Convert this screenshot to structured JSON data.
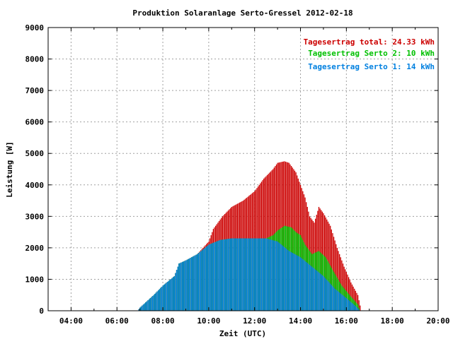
{
  "chart_data": {
    "type": "bar",
    "title": "Produktion Solaranlage Serto-Gressel 2012-02-18",
    "xlabel": "Zeit (UTC)",
    "ylabel": "Leistung [W]",
    "xlim": [
      3.0,
      20.0
    ],
    "ylim": [
      0,
      9000
    ],
    "grid": true,
    "legend_position": "top-right",
    "x_ticks": [
      "04:00",
      "06:00",
      "08:00",
      "10:00",
      "12:00",
      "14:00",
      "16:00",
      "18:00",
      "20:00"
    ],
    "y_ticks": [
      "0",
      "1000",
      "2000",
      "3000",
      "4000",
      "5000",
      "6000",
      "7000",
      "8000",
      "9000"
    ],
    "legend": [
      {
        "label": "Tagesertrag total: 24.33 kWh",
        "color": "#cc0000"
      },
      {
        "label": "Tagesertrag Serto 2: 10 kWh",
        "color": "#00c000"
      },
      {
        "label": "Tagesertrag Serto 1: 14 kWh",
        "color": "#0080e0"
      }
    ],
    "series_colors": {
      "total": "#cc0000",
      "serto2": "#00c000",
      "serto1": "#0080e0"
    },
    "anchors": {
      "total": [
        [
          6.9,
          0
        ],
        [
          7.0,
          100
        ],
        [
          7.3,
          300
        ],
        [
          7.6,
          500
        ],
        [
          8.0,
          800
        ],
        [
          8.5,
          1100
        ],
        [
          8.7,
          1500
        ],
        [
          9.0,
          1600
        ],
        [
          9.5,
          1800
        ],
        [
          10.0,
          2200
        ],
        [
          10.2,
          2600
        ],
        [
          10.6,
          3000
        ],
        [
          11.0,
          3300
        ],
        [
          11.5,
          3500
        ],
        [
          12.0,
          3800
        ],
        [
          12.4,
          4200
        ],
        [
          12.8,
          4500
        ],
        [
          13.0,
          4700
        ],
        [
          13.3,
          4750
        ],
        [
          13.5,
          4700
        ],
        [
          13.8,
          4400
        ],
        [
          14.2,
          3600
        ],
        [
          14.4,
          3000
        ],
        [
          14.6,
          2800
        ],
        [
          14.8,
          3300
        ],
        [
          15.0,
          3100
        ],
        [
          15.3,
          2700
        ],
        [
          15.6,
          2000
        ],
        [
          15.9,
          1400
        ],
        [
          16.2,
          900
        ],
        [
          16.5,
          500
        ],
        [
          16.65,
          0
        ]
      ],
      "serto2": [
        [
          6.9,
          0
        ],
        [
          7.0,
          100
        ],
        [
          7.3,
          300
        ],
        [
          7.6,
          500
        ],
        [
          8.0,
          800
        ],
        [
          8.5,
          1100
        ],
        [
          8.7,
          1500
        ],
        [
          9.0,
          1600
        ],
        [
          9.5,
          1800
        ],
        [
          10.0,
          2100
        ],
        [
          10.5,
          2250
        ],
        [
          11.0,
          2300
        ],
        [
          12.0,
          2300
        ],
        [
          12.5,
          2300
        ],
        [
          12.8,
          2400
        ],
        [
          13.0,
          2550
        ],
        [
          13.3,
          2700
        ],
        [
          13.6,
          2650
        ],
        [
          13.8,
          2500
        ],
        [
          14.0,
          2400
        ],
        [
          14.2,
          2100
        ],
        [
          14.5,
          1800
        ],
        [
          14.8,
          1900
        ],
        [
          15.1,
          1700
        ],
        [
          15.4,
          1300
        ],
        [
          15.8,
          800
        ],
        [
          16.2,
          450
        ],
        [
          16.5,
          200
        ],
        [
          16.6,
          0
        ]
      ],
      "serto1": [
        [
          6.9,
          0
        ],
        [
          7.0,
          100
        ],
        [
          7.3,
          300
        ],
        [
          7.6,
          500
        ],
        [
          8.0,
          800
        ],
        [
          8.5,
          1100
        ],
        [
          8.7,
          1500
        ],
        [
          9.0,
          1600
        ],
        [
          9.5,
          1800
        ],
        [
          10.0,
          2100
        ],
        [
          10.5,
          2250
        ],
        [
          11.0,
          2300
        ],
        [
          12.0,
          2300
        ],
        [
          12.5,
          2300
        ],
        [
          13.0,
          2200
        ],
        [
          13.5,
          1900
        ],
        [
          14.0,
          1700
        ],
        [
          14.5,
          1400
        ],
        [
          15.0,
          1100
        ],
        [
          15.5,
          700
        ],
        [
          16.0,
          400
        ],
        [
          16.4,
          150
        ],
        [
          16.6,
          0
        ]
      ]
    },
    "bar_step_hours": 0.05
  }
}
